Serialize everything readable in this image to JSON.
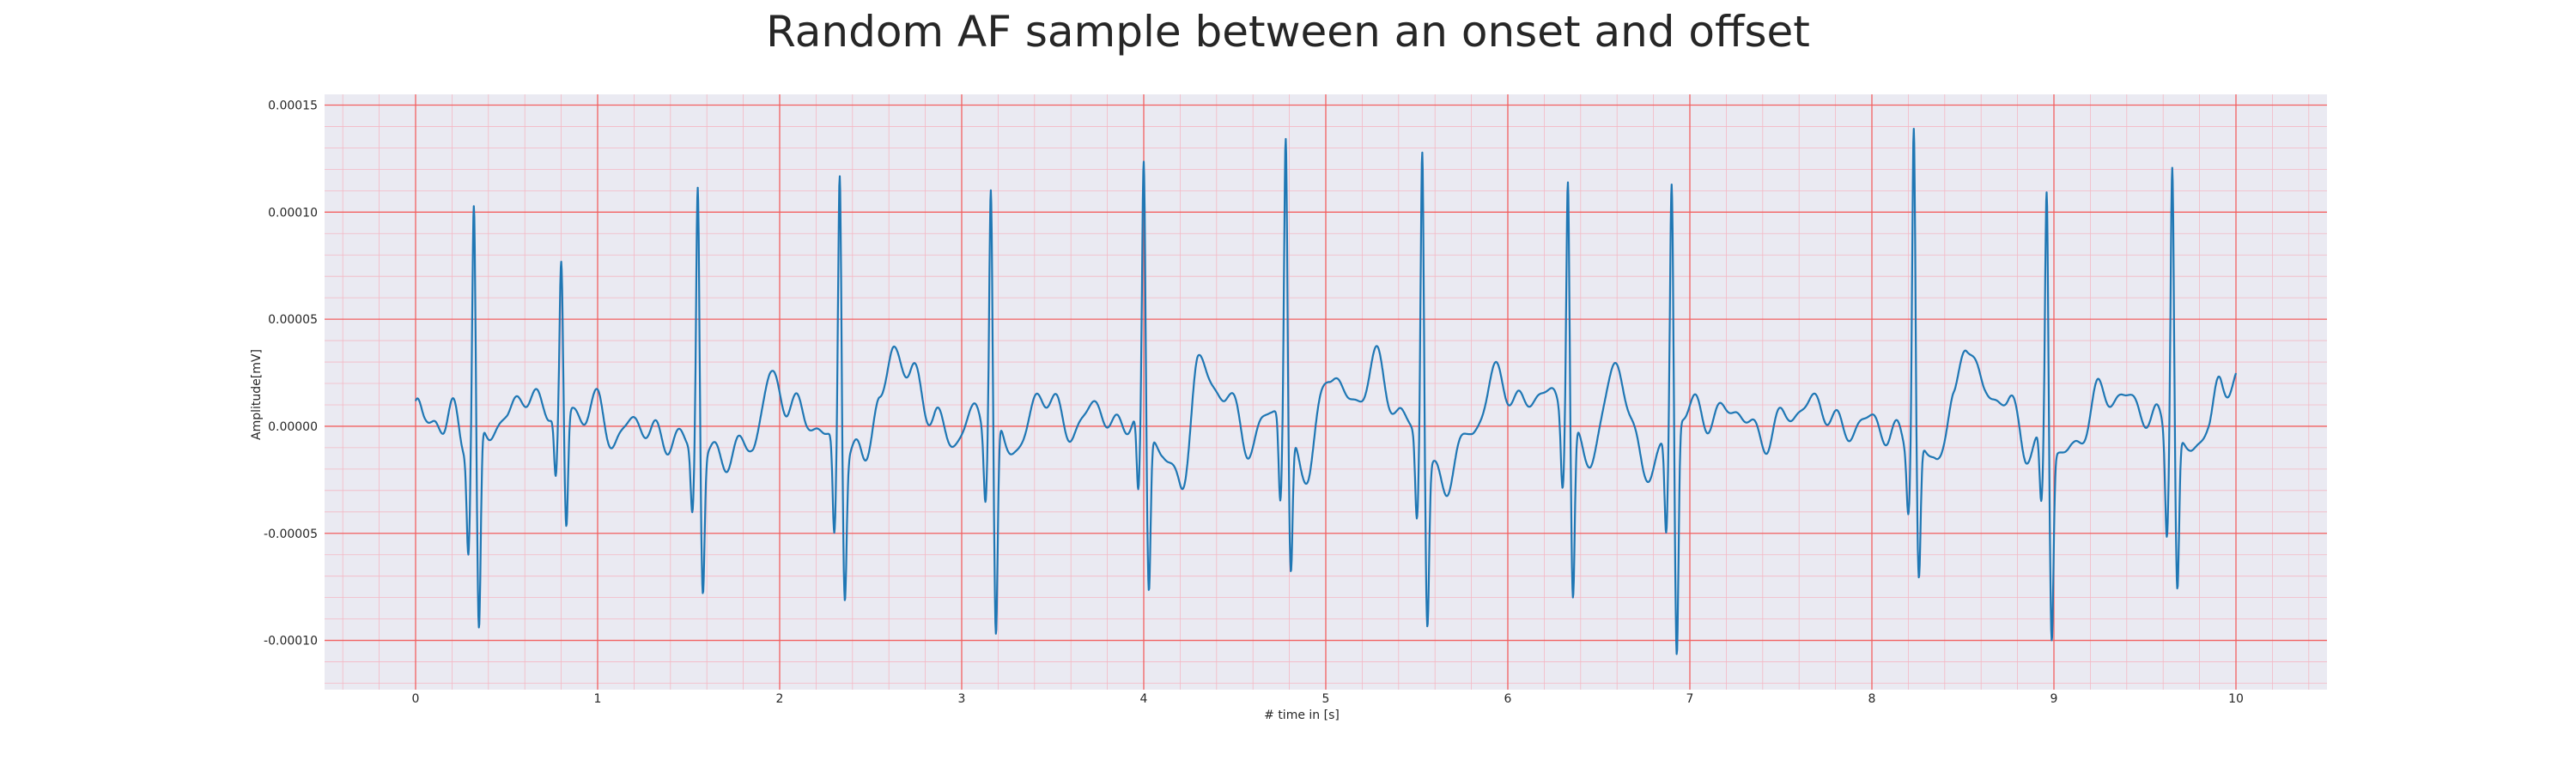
{
  "chart_data": {
    "type": "line",
    "title": "Random AF sample between an onset and offset",
    "xlabel": "# time in [s]",
    "ylabel": "Amplitude[mV]",
    "xlim": [
      -0.5,
      10.5
    ],
    "ylim": [
      -0.000123,
      0.000155
    ],
    "x_ticks": [
      0,
      1,
      2,
      3,
      4,
      5,
      6,
      7,
      8,
      9,
      10
    ],
    "x_tick_labels": [
      "0",
      "1",
      "2",
      "3",
      "4",
      "5",
      "6",
      "7",
      "8",
      "9",
      "10"
    ],
    "y_ticks": [
      0.00015,
      0.0001,
      5e-05,
      0.0,
      -5e-05,
      -0.0001
    ],
    "y_tick_labels": [
      "0.00015",
      "0.00010",
      "0.00005",
      "0.00000",
      "-0.00005",
      "-0.00010"
    ],
    "grid": true,
    "minor_grid": true,
    "series": [
      {
        "color": "#1f77b4",
        "peaks": [
          [
            0.32,
            0.000102,
            -9.7e-05,
            -4.7e-05
          ],
          [
            0.8,
            7.6e-05,
            -5.5e-05,
            -3e-05
          ],
          [
            1.55,
            0.000114,
            -6.5e-05,
            -3e-05
          ],
          [
            2.33,
            0.00012,
            -6.6e-05,
            -4.6e-05
          ],
          [
            3.16,
            0.000115,
            -9.9e-05,
            -3e-05
          ],
          [
            4.0,
            0.000122,
            -7.5e-05,
            -3.7e-05
          ],
          [
            4.78,
            0.000135,
            -6.5e-05,
            -4e-05
          ],
          [
            5.53,
            0.000133,
            -7.5e-05,
            -3.7e-05
          ],
          [
            6.33,
            0.000121,
            -7.8e-05,
            -3e-05
          ],
          [
            6.9,
            0.000114,
            -0.00011,
            -4.5e-05
          ],
          [
            8.23,
            0.000142,
            -6.3e-05,
            -2.7e-05
          ],
          [
            8.96,
            0.000112,
            -8.6e-05,
            -3e-05
          ],
          [
            9.65,
            0.000126,
            -7.1e-05,
            -4.5e-05
          ]
        ],
        "baseline_points": [
          [
            0.0,
            9e-06
          ],
          [
            0.05,
            2e-06
          ],
          [
            0.1,
            4e-06
          ],
          [
            0.15,
            -1e-06
          ],
          [
            0.2,
            8e-06
          ],
          [
            0.26,
            -7e-06
          ],
          [
            0.4,
            -3e-06
          ],
          [
            0.5,
            4e-06
          ],
          [
            0.6,
            1.6e-05
          ],
          [
            0.7,
            8e-06
          ],
          [
            0.9,
            6e-06
          ],
          [
            1.0,
            1e-05
          ],
          [
            1.1,
            -8e-06
          ],
          [
            1.2,
            4e-06
          ],
          [
            1.3,
            -4e-06
          ],
          [
            1.4,
            -6e-06
          ],
          [
            1.7,
            -1.4e-05
          ],
          [
            1.85,
            -8e-06
          ],
          [
            1.95,
            2.2e-05
          ],
          [
            2.05,
            1.1e-05
          ],
          [
            2.15,
            4e-06
          ],
          [
            2.25,
            -5e-06
          ],
          [
            2.45,
            -1.4e-05
          ],
          [
            2.55,
            1e-05
          ],
          [
            2.63,
            3.7e-05
          ],
          [
            2.72,
            2.4e-05
          ],
          [
            2.85,
            5e-06
          ],
          [
            2.95,
            -8e-06
          ],
          [
            3.05,
            5e-06
          ],
          [
            3.3,
            -1e-05
          ],
          [
            3.45,
            1.6e-05
          ],
          [
            3.6,
            -2e-06
          ],
          [
            3.75,
            1e-05
          ],
          [
            3.85,
            -2e-06
          ],
          [
            3.95,
            5e-06
          ],
          [
            4.1,
            -1e-05
          ],
          [
            4.2,
            -3e-05
          ],
          [
            4.3,
            2.8e-05
          ],
          [
            4.45,
            1.4e-05
          ],
          [
            4.6,
            -1e-05
          ],
          [
            4.7,
            1e-05
          ],
          [
            4.9,
            -2e-05
          ],
          [
            5.02,
            2.6e-05
          ],
          [
            5.15,
            1e-05
          ],
          [
            5.28,
            3e-05
          ],
          [
            5.4,
            5e-06
          ],
          [
            5.65,
            -2.6e-05
          ],
          [
            5.8,
            -2e-06
          ],
          [
            5.95,
            2.5e-05
          ],
          [
            6.05,
            1e-05
          ],
          [
            6.2,
            1.6e-05
          ],
          [
            6.45,
            -1.4e-05
          ],
          [
            6.6,
            2.8e-05
          ],
          [
            6.75,
            -2e-05
          ],
          [
            7.0,
            9e-06
          ],
          [
            7.1,
            4e-06
          ],
          [
            7.25,
            8e-06
          ],
          [
            7.4,
            -6e-06
          ],
          [
            7.55,
            6e-06
          ],
          [
            7.7,
            1.1e-05
          ],
          [
            7.85,
            -2e-06
          ],
          [
            8.0,
            3e-06
          ],
          [
            8.1,
            -4e-06
          ],
          [
            8.35,
            -1.5e-05
          ],
          [
            8.45,
            1e-05
          ],
          [
            8.52,
            4.2e-05
          ],
          [
            8.62,
            1.5e-05
          ],
          [
            8.75,
            1.2e-05
          ],
          [
            8.85,
            -1e-05
          ],
          [
            9.1,
            -1.2e-05
          ],
          [
            9.25,
            1.5e-05
          ],
          [
            9.4,
            1.3e-05
          ],
          [
            9.55,
            3e-06
          ],
          [
            9.75,
            -1.2e-05
          ],
          [
            9.85,
            1e-06
          ],
          [
            9.92,
            2e-05
          ],
          [
            10.0,
            2.2e-05
          ]
        ]
      }
    ]
  }
}
